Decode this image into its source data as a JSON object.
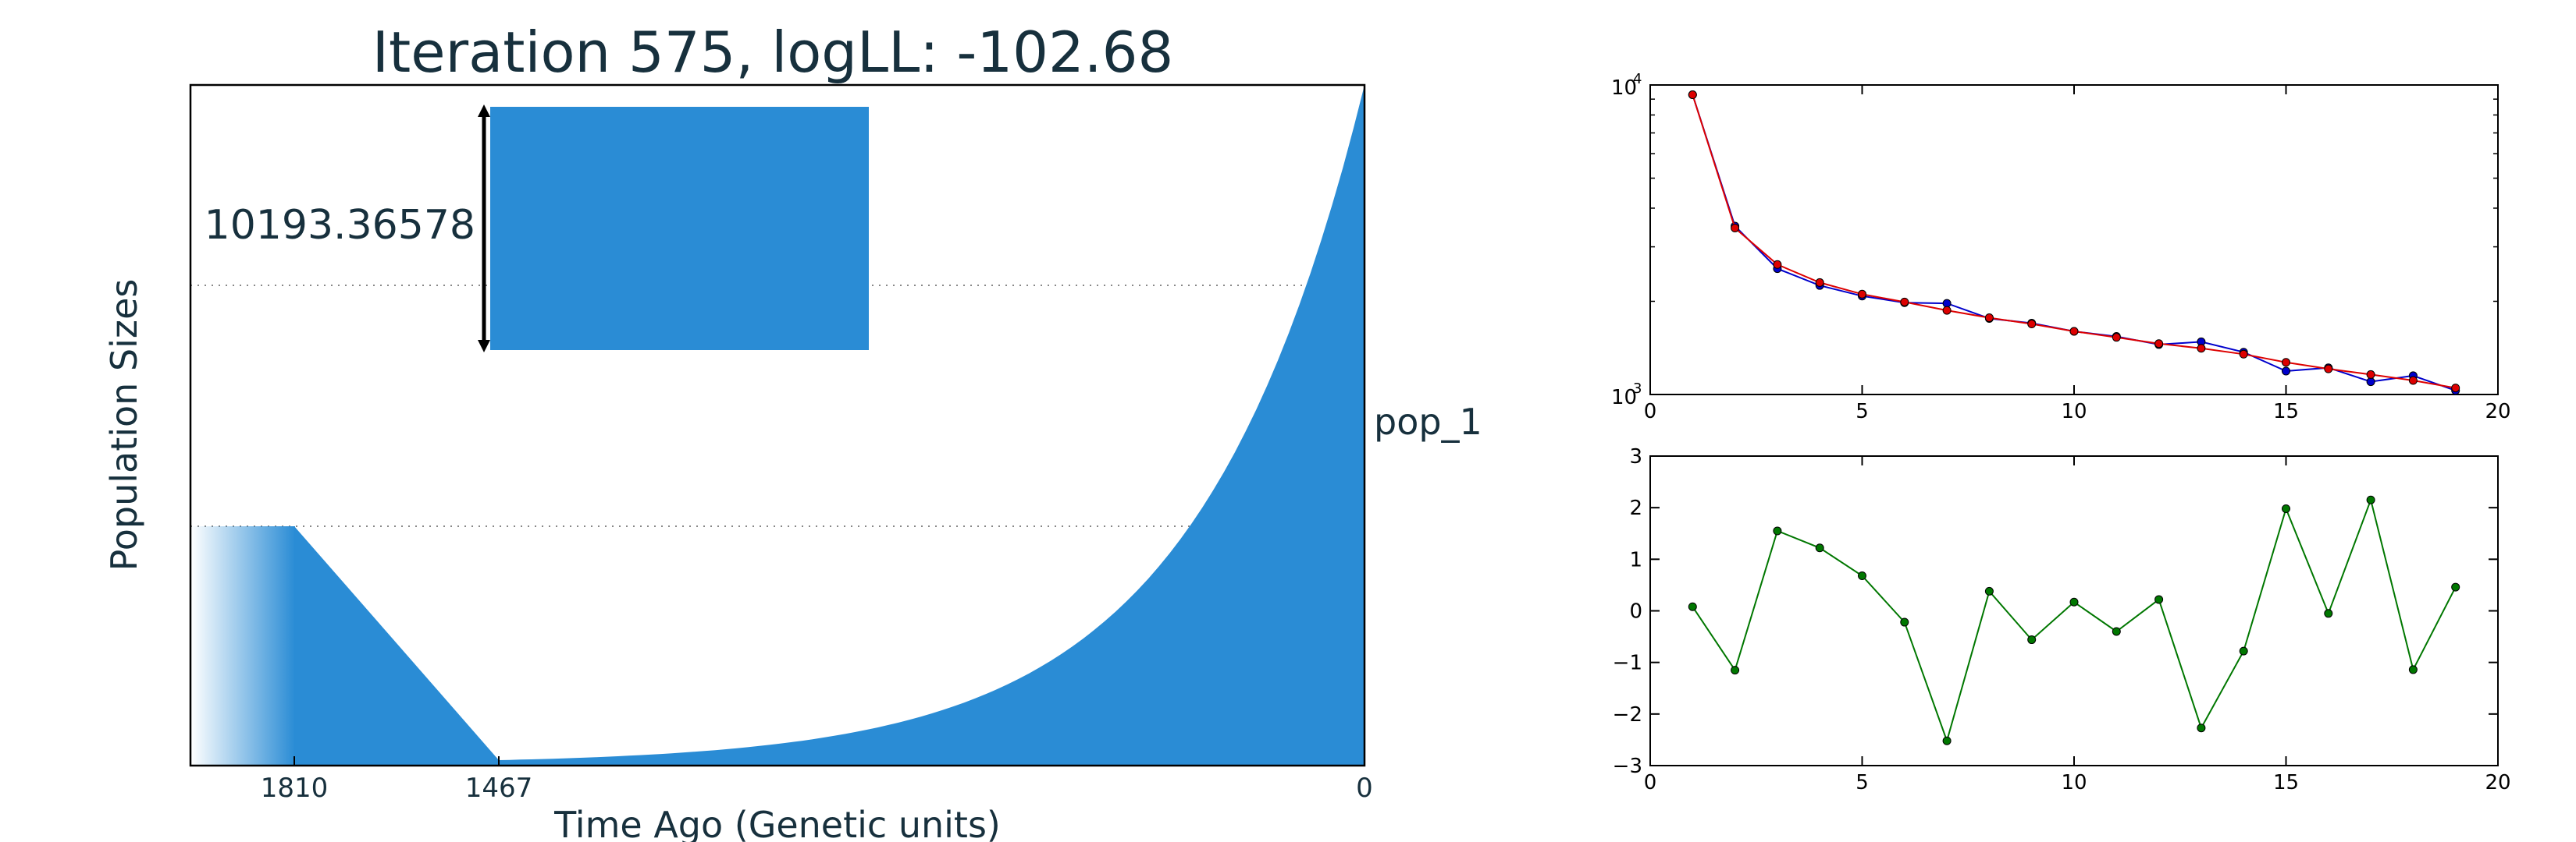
{
  "colors": {
    "fill_blue": "#2a8cd5",
    "text_dark": "#17303d",
    "blue_series": "#0000cc",
    "red_series": "#dd0000",
    "green_series": "#007700"
  },
  "chart_data": [
    {
      "type": "area",
      "title": "Iteration 575, logLL:    -102.68",
      "xlabel": "Time Ago (Genetic units)",
      "ylabel": "Population Sizes",
      "x_ticks": [
        "1810",
        "1467",
        "0"
      ],
      "population_label": "pop_1",
      "scale_label": "10193.36578",
      "grid": "dotted horizontal",
      "note": "demographic history: exponential growth from 1467 to present, linear decline between 1810 and 1467"
    },
    {
      "type": "line",
      "yscale": "log",
      "xlim": [
        0,
        20
      ],
      "ylim": [
        1000,
        10000
      ],
      "x_ticks": [
        "0",
        "5",
        "10",
        "15",
        "20"
      ],
      "y_ticks": [
        "10",
        "10"
      ],
      "y_tick_exponents": [
        "4",
        "3"
      ],
      "x": [
        1,
        2,
        3,
        4,
        5,
        6,
        7,
        8,
        9,
        10,
        11,
        12,
        13,
        14,
        15,
        16,
        17,
        18,
        19
      ],
      "series": [
        {
          "color": "#0000cc",
          "values": [
            9300,
            3500,
            2550,
            2250,
            2080,
            1980,
            1970,
            1760,
            1700,
            1600,
            1540,
            1450,
            1480,
            1370,
            1190,
            1220,
            1100,
            1150,
            1030
          ]
        },
        {
          "color": "#dd0000",
          "values": [
            9300,
            3450,
            2630,
            2300,
            2110,
            1990,
            1870,
            1770,
            1690,
            1600,
            1530,
            1460,
            1410,
            1350,
            1270,
            1210,
            1160,
            1110,
            1050
          ]
        }
      ]
    },
    {
      "type": "line",
      "xlim": [
        0,
        20
      ],
      "ylim": [
        -3,
        3
      ],
      "x_ticks": [
        "0",
        "5",
        "10",
        "15",
        "20"
      ],
      "y_ticks": [
        "3",
        "2",
        "1",
        "0",
        "−1",
        "−2",
        "−3"
      ],
      "x": [
        1,
        2,
        3,
        4,
        5,
        6,
        7,
        8,
        9,
        10,
        11,
        12,
        13,
        14,
        15,
        16,
        17,
        18,
        19
      ],
      "series": [
        {
          "color": "#007700",
          "values": [
            0.08,
            -1.15,
            1.55,
            1.22,
            0.68,
            -0.22,
            -2.52,
            0.38,
            -0.56,
            0.17,
            -0.4,
            0.22,
            -2.27,
            -0.78,
            1.98,
            -0.05,
            2.15,
            -1.14,
            0.46
          ]
        }
      ]
    }
  ]
}
